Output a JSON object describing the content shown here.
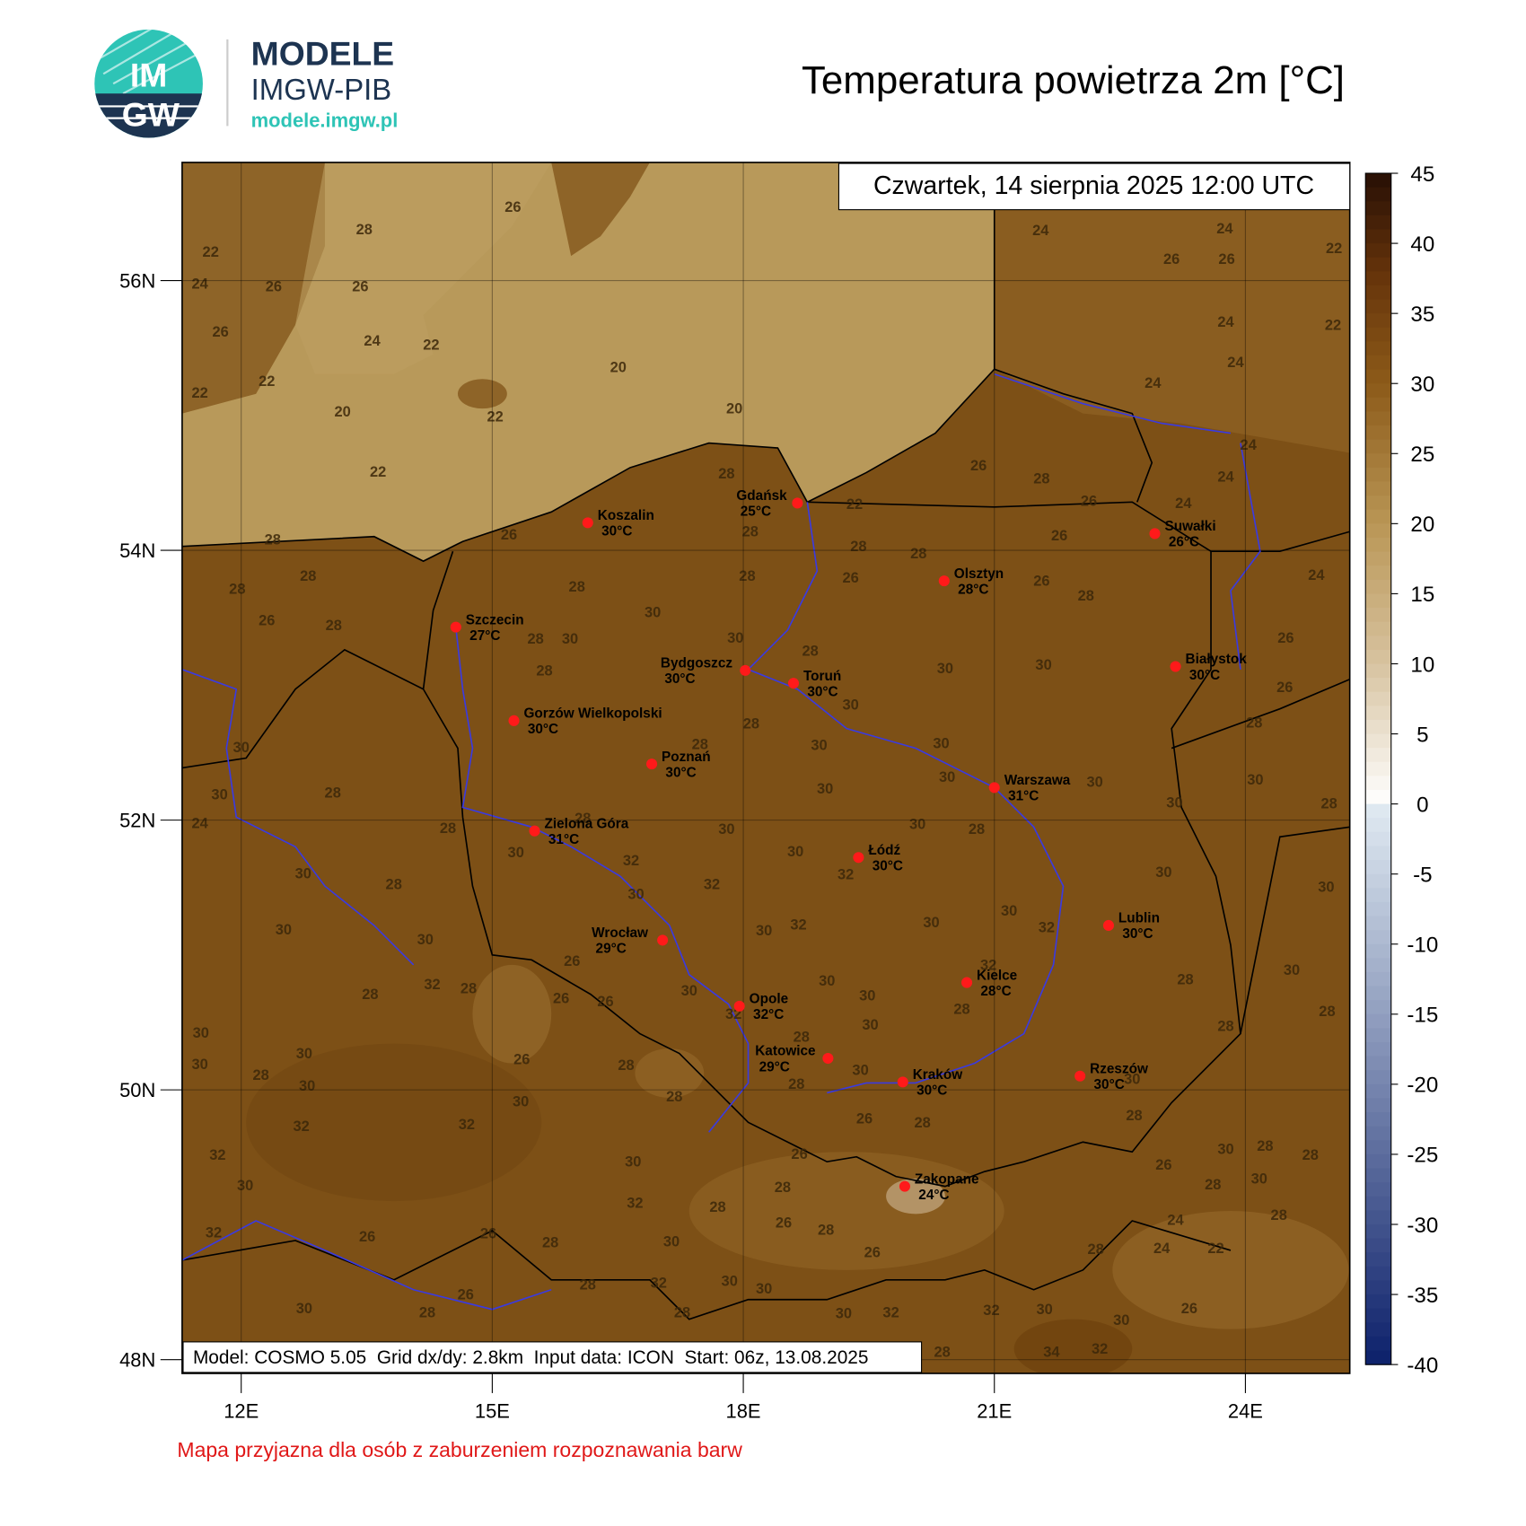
{
  "header": {
    "logo_top": "IM",
    "logo_bottom": "GW",
    "brand": "MODELE",
    "institute": "IMGW-PIB",
    "url": "modele.imgw.pl",
    "title": "Temperatura powietrza 2m [°C]"
  },
  "map": {
    "timestamp": "Czwartek, 14 sierpnia 2025 12:00 UTC",
    "model_info": "Model: COSMO 5.05  Grid dx/dy: 2.8km  Input data: ICON  Start: 06z, 13.08.2025",
    "lat_ticks": [
      "56N",
      "54N",
      "52N",
      "50N",
      "48N"
    ],
    "lon_ticks": [
      "12E",
      "15E",
      "18E",
      "21E",
      "24E"
    ],
    "cities": [
      {
        "name": "Koszalin",
        "temp": "30°C"
      },
      {
        "name": "Gdańsk",
        "temp": "25°C"
      },
      {
        "name": "Suwałki",
        "temp": "26°C"
      },
      {
        "name": "Olsztyn",
        "temp": "28°C"
      },
      {
        "name": "Szczecin",
        "temp": "27°C"
      },
      {
        "name": "Białystok",
        "temp": "30°C"
      },
      {
        "name": "Bydgoszcz",
        "temp": "30°C"
      },
      {
        "name": "Toruń",
        "temp": "30°C"
      },
      {
        "name": "Gorzów Wielkopolski",
        "temp": "30°C"
      },
      {
        "name": "Poznań",
        "temp": "30°C"
      },
      {
        "name": "Warszawa",
        "temp": "31°C"
      },
      {
        "name": "Zielona Góra",
        "temp": "31°C"
      },
      {
        "name": "Łódź",
        "temp": "30°C"
      },
      {
        "name": "Lublin",
        "temp": "30°C"
      },
      {
        "name": "Wrocław",
        "temp": "29°C"
      },
      {
        "name": "Kielce",
        "temp": "28°C"
      },
      {
        "name": "Opole",
        "temp": "32°C"
      },
      {
        "name": "Katowice",
        "temp": "29°C"
      },
      {
        "name": "Kraków",
        "temp": "30°C"
      },
      {
        "name": "Rzeszów",
        "temp": "30°C"
      },
      {
        "name": "Zakopane",
        "temp": "24°C"
      }
    ],
    "contour_labels": [
      "26",
      "28",
      "22",
      "24",
      "26",
      "26",
      "26",
      "24",
      "22",
      "22",
      "22",
      "20",
      "20",
      "20",
      "22",
      "22",
      "28",
      "28",
      "28",
      "26",
      "28",
      "26",
      "28",
      "28",
      "30",
      "28",
      "30",
      "28",
      "28",
      "28",
      "30",
      "28",
      "30",
      "28",
      "30",
      "30",
      "30",
      "30",
      "30",
      "30",
      "28",
      "28",
      "26",
      "26",
      "28",
      "26",
      "26",
      "26",
      "28",
      "24",
      "24",
      "26",
      "26",
      "22",
      "24",
      "22",
      "24",
      "24",
      "24",
      "24",
      "24",
      "24",
      "26",
      "26",
      "28",
      "30",
      "30",
      "28",
      "30",
      "30",
      "32",
      "30",
      "30",
      "28",
      "28",
      "28",
      "30",
      "28",
      "30",
      "28",
      "28",
      "26",
      "30",
      "28",
      "28",
      "24",
      "24",
      "22",
      "28",
      "26",
      "30",
      "32",
      "34",
      "30",
      "32",
      "28",
      "32",
      "30",
      "30",
      "30",
      "28",
      "32",
      "30",
      "28",
      "28",
      "26",
      "26",
      "28",
      "26",
      "30",
      "32",
      "30",
      "32",
      "32",
      "32",
      "30",
      "26",
      "28",
      "30",
      "32",
      "28",
      "28",
      "26",
      "28",
      "26",
      "26",
      "26",
      "28",
      "30",
      "28",
      "28",
      "30",
      "30",
      "30",
      "28",
      "32",
      "30",
      "32",
      "30",
      "32",
      "30",
      "32",
      "30",
      "30",
      "32",
      "30",
      "28",
      "30",
      "28",
      "26",
      "26",
      "26",
      "28",
      "30",
      "32",
      "30",
      "28",
      "28",
      "28",
      "30",
      "30",
      "30",
      "32",
      "28",
      "28",
      "30",
      "30",
      "30",
      "28",
      "30",
      "28",
      "30",
      "30",
      "24",
      "22"
    ]
  },
  "colorbar": {
    "ticks": [
      45,
      40,
      35,
      30,
      25,
      20,
      15,
      10,
      5,
      0,
      -5,
      -10,
      -15,
      -20,
      -25,
      -30,
      -35,
      -40
    ]
  },
  "footer": {
    "note": "Mapa przyjazna dla osób z zaburzeniem rozpoznawania barw"
  }
}
